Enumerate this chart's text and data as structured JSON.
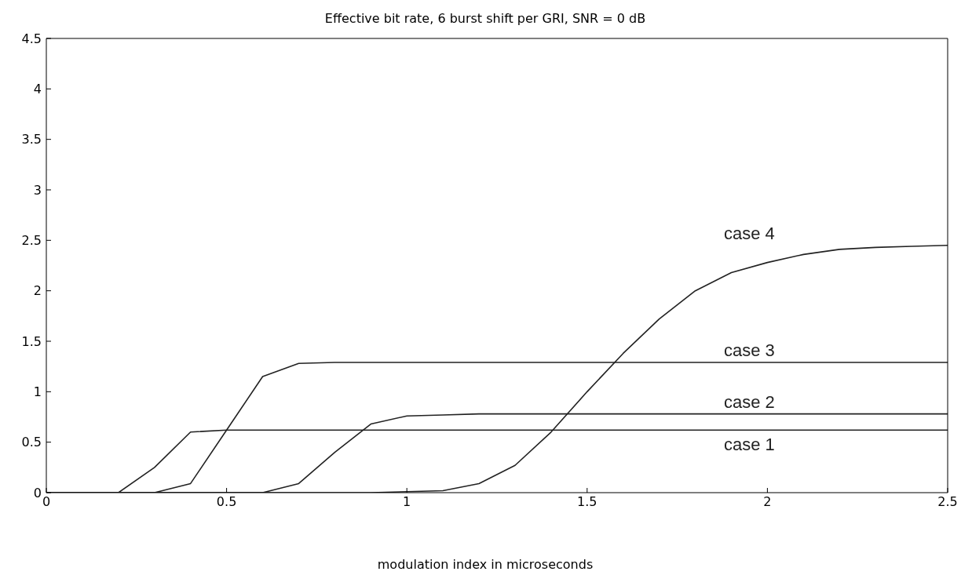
{
  "chart_data": {
    "type": "line",
    "title": "Effective bit rate, 6 burst shift per GRI, SNR = 0 dB",
    "xlabel": "modulation index in microseconds",
    "x": [
      0,
      0.1,
      0.2,
      0.3,
      0.4,
      0.5,
      0.6,
      0.7,
      0.8,
      0.9,
      1,
      1.1,
      1.2,
      1.3,
      1.4,
      1.5,
      1.6,
      1.7,
      1.8,
      1.9,
      2,
      2.1,
      2.2,
      2.3,
      2.4,
      2.5
    ],
    "series": [
      {
        "name": "case 1",
        "color": "#222222",
        "values": [
          0,
          0,
          0,
          0.25,
          0.6,
          0.62,
          0.62,
          0.62,
          0.62,
          0.62,
          0.62,
          0.62,
          0.62,
          0.62,
          0.62,
          0.62,
          0.62,
          0.62,
          0.62,
          0.62,
          0.62,
          0.62,
          0.62,
          0.62,
          0.62,
          0.62
        ]
      },
      {
        "name": "case 2",
        "color": "#222222",
        "values": [
          0,
          0,
          0,
          0,
          0,
          0,
          0,
          0.09,
          0.4,
          0.68,
          0.76,
          0.77,
          0.78,
          0.78,
          0.78,
          0.78,
          0.78,
          0.78,
          0.78,
          0.78,
          0.78,
          0.78,
          0.78,
          0.78,
          0.78,
          0.78
        ]
      },
      {
        "name": "case 3",
        "color": "#222222",
        "values": [
          0,
          0,
          0,
          0,
          0.09,
          0.62,
          1.15,
          1.28,
          1.29,
          1.29,
          1.29,
          1.29,
          1.29,
          1.29,
          1.29,
          1.29,
          1.29,
          1.29,
          1.29,
          1.29,
          1.29,
          1.29,
          1.29,
          1.29,
          1.29,
          1.29
        ]
      },
      {
        "name": "case 4",
        "color": "#222222",
        "values": [
          0,
          0,
          0,
          0,
          0,
          0,
          0,
          0,
          0,
          0,
          0.01,
          0.02,
          0.09,
          0.27,
          0.6,
          1.0,
          1.38,
          1.72,
          2.0,
          2.18,
          2.28,
          2.36,
          2.41,
          2.43,
          2.44,
          2.45
        ]
      }
    ],
    "xlim": [
      0,
      2.5
    ],
    "xticks": [
      0,
      0.5,
      1,
      1.5,
      2,
      2.5
    ],
    "ylim": [
      0,
      4.5
    ],
    "yticks": [
      0,
      0.5,
      1,
      1.5,
      2,
      2.5,
      3,
      3.5,
      4,
      4.5
    ],
    "grid": false,
    "legend": false,
    "marker": "none",
    "line_style": "solid"
  }
}
